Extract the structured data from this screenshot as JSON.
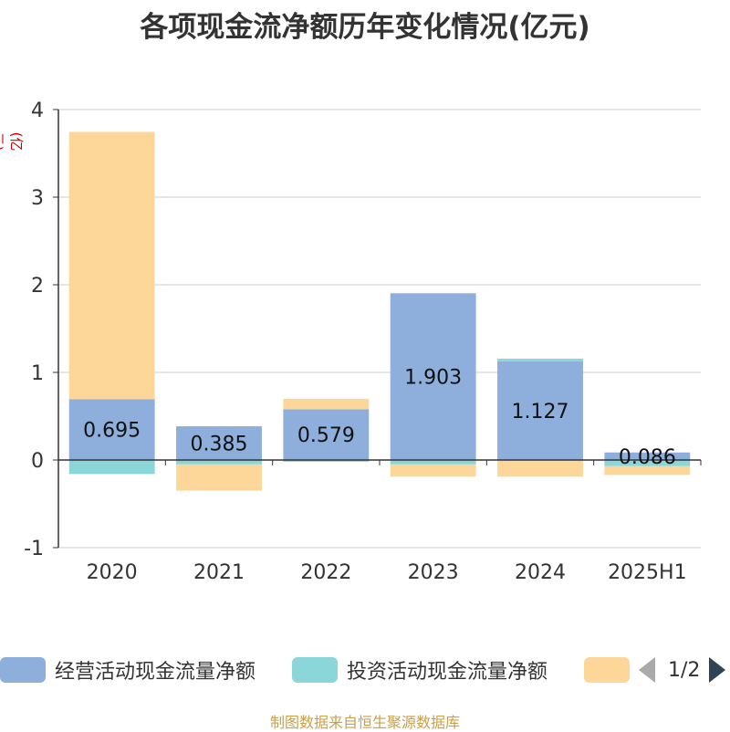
{
  "title": "各项现金流净额历年变化情况(亿元)",
  "source": "制图数据来自恒生聚源数据库",
  "legend_pager": {
    "text": "1/2"
  },
  "chart_data": {
    "type": "bar",
    "stacked": true,
    "y_unit": "(亿元)",
    "ylim": [
      -1,
      4
    ],
    "yticks": [
      "4",
      "3",
      "2",
      "1",
      "0",
      "-1"
    ],
    "grid": true,
    "legend": "bottom",
    "categories": [
      "2020",
      "2021",
      "2022",
      "2023",
      "2024",
      "2025H1"
    ],
    "series": [
      {
        "name": "经营活动现金流量净额",
        "color": "#8eaedb",
        "values": [
          0.695,
          0.385,
          0.579,
          1.903,
          1.127,
          0.086
        ],
        "labels": [
          "0.695",
          "0.385",
          "0.579",
          "1.903",
          "1.127",
          "0.086"
        ]
      },
      {
        "name": "投资活动现金流量净额",
        "color": "#8ad6d8",
        "values": [
          -0.16,
          -0.05,
          -0.02,
          -0.05,
          0.03,
          -0.07
        ]
      },
      {
        "name": "",
        "color": "#fdd79a",
        "values": [
          3.05,
          -0.3,
          0.12,
          -0.14,
          -0.19,
          -0.1
        ]
      }
    ]
  }
}
